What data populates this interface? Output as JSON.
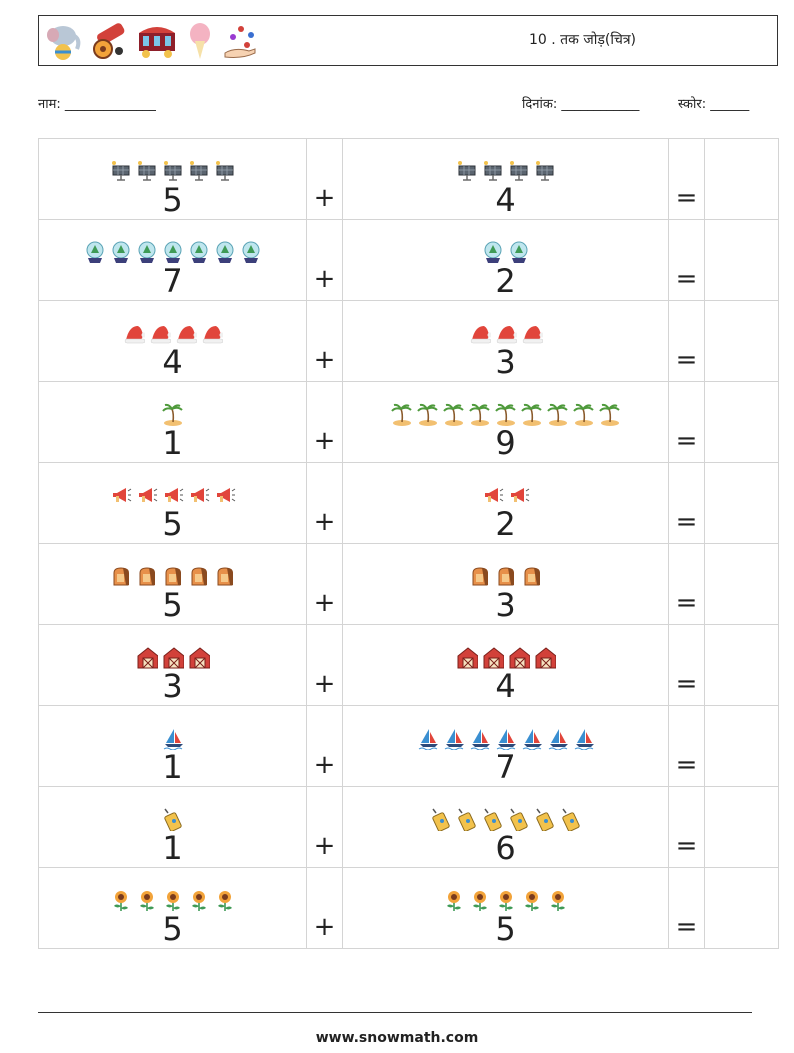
{
  "header": {
    "title": "10 . तक जोड़(चित्र)",
    "icons": [
      "elephant-ball-icon",
      "circus-cannon-icon",
      "circus-wagon-icon",
      "cotton-candy-icon",
      "juggling-hand-icon"
    ]
  },
  "meta": {
    "name_label": "नाम: ______________",
    "date_label": "दिनांक: ____________",
    "score_label": "स्कोर: ______"
  },
  "operators": {
    "plus": "+",
    "equals": "="
  },
  "rows": [
    {
      "left": {
        "value": "5",
        "icon": "solar-panel-icon"
      },
      "right": {
        "value": "4",
        "icon": "solar-panel-icon"
      }
    },
    {
      "left": {
        "value": "7",
        "icon": "snow-globe-icon"
      },
      "right": {
        "value": "2",
        "icon": "snow-globe-icon"
      }
    },
    {
      "left": {
        "value": "4",
        "icon": "santa-hat-icon"
      },
      "right": {
        "value": "3",
        "icon": "santa-hat-icon"
      }
    },
    {
      "left": {
        "value": "1",
        "icon": "palm-island-icon"
      },
      "right": {
        "value": "9",
        "icon": "palm-island-icon"
      }
    },
    {
      "left": {
        "value": "5",
        "icon": "megaphone-icon"
      },
      "right": {
        "value": "2",
        "icon": "megaphone-icon"
      }
    },
    {
      "left": {
        "value": "5",
        "icon": "toast-icon"
      },
      "right": {
        "value": "3",
        "icon": "toast-icon"
      }
    },
    {
      "left": {
        "value": "3",
        "icon": "barn-icon"
      },
      "right": {
        "value": "4",
        "icon": "barn-icon"
      }
    },
    {
      "left": {
        "value": "1",
        "icon": "sailboat-icon"
      },
      "right": {
        "value": "7",
        "icon": "sailboat-icon"
      }
    },
    {
      "left": {
        "value": "1",
        "icon": "walkie-talkie-icon"
      },
      "right": {
        "value": "6",
        "icon": "walkie-talkie-icon"
      }
    },
    {
      "left": {
        "value": "5",
        "icon": "sunflower-icon"
      },
      "right": {
        "value": "5",
        "icon": "sunflower-icon"
      }
    }
  ],
  "footer": {
    "url": "www.snowmath.com"
  }
}
